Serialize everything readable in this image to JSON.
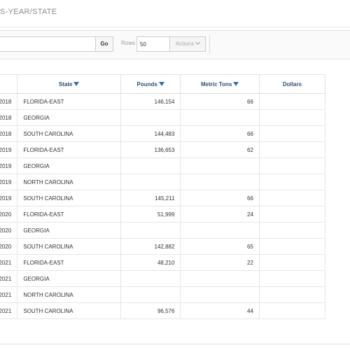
{
  "header": {
    "title": "S-YEAR/STATE"
  },
  "toolbar": {
    "search_value": "",
    "go_label": "Go",
    "rows_label": "Rows",
    "rows_value": "50",
    "actions_label": "Actions"
  },
  "table": {
    "columns": {
      "state": "State",
      "pounds": "Pounds",
      "metric_tons": "Metric Tons",
      "dollars": "Dollars"
    },
    "rows": [
      {
        "year": "2018",
        "state": "FLORIDA-EAST",
        "pounds": "146,154",
        "metric_tons": "66",
        "dollars": ""
      },
      {
        "year": "2018",
        "state": "GEORGIA",
        "pounds": "",
        "metric_tons": "",
        "dollars": ""
      },
      {
        "year": "2018",
        "state": "SOUTH CAROLINA",
        "pounds": "144,483",
        "metric_tons": "66",
        "dollars": ""
      },
      {
        "year": "2019",
        "state": "FLORIDA-EAST",
        "pounds": "136,653",
        "metric_tons": "62",
        "dollars": ""
      },
      {
        "year": "2019",
        "state": "GEORGIA",
        "pounds": "",
        "metric_tons": "",
        "dollars": ""
      },
      {
        "year": "2019",
        "state": "NORTH CAROLINA",
        "pounds": "",
        "metric_tons": "",
        "dollars": ""
      },
      {
        "year": "2019",
        "state": "SOUTH CAROLINA",
        "pounds": "145,211",
        "metric_tons": "66",
        "dollars": ""
      },
      {
        "year": "2020",
        "state": "FLORIDA-EAST",
        "pounds": "51,999",
        "metric_tons": "24",
        "dollars": ""
      },
      {
        "year": "2020",
        "state": "GEORGIA",
        "pounds": "",
        "metric_tons": "",
        "dollars": ""
      },
      {
        "year": "2020",
        "state": "SOUTH CAROLINA",
        "pounds": "142,882",
        "metric_tons": "65",
        "dollars": ""
      },
      {
        "year": "2021",
        "state": "FLORIDA-EAST",
        "pounds": "48,210",
        "metric_tons": "22",
        "dollars": ""
      },
      {
        "year": "2021",
        "state": "GEORGIA",
        "pounds": "",
        "metric_tons": "",
        "dollars": ""
      },
      {
        "year": "2021",
        "state": "NORTH CAROLINA",
        "pounds": "",
        "metric_tons": "",
        "dollars": ""
      },
      {
        "year": "2021",
        "state": "SOUTH CAROLINA",
        "pounds": "96,576",
        "metric_tons": "44",
        "dollars": ""
      }
    ]
  },
  "icons": {
    "sort": "sort-desc-icon",
    "actions": "chevron-down-icon"
  }
}
